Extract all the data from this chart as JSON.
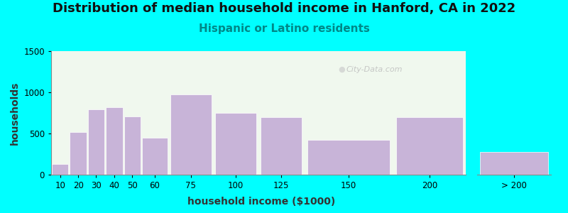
{
  "title": "Distribution of median household income in Hanford, CA in 2022",
  "subtitle": "Hispanic or Latino residents",
  "xlabel": "household income ($1000)",
  "ylabel": "households",
  "background_outer": "#00FFFF",
  "background_inner": "#e8f5e5",
  "bar_color": "#c8b4d8",
  "bar_edge_color": "#ffffff",
  "categories": [
    "10",
    "20",
    "30",
    "40",
    "50",
    "60",
    "75",
    "100",
    "125",
    "150",
    "200",
    "> 200"
  ],
  "values": [
    130,
    520,
    790,
    820,
    710,
    450,
    970,
    750,
    700,
    420,
    700,
    280
  ],
  "ylim": [
    0,
    1500
  ],
  "yticks": [
    0,
    500,
    1000,
    1500
  ],
  "title_fontsize": 13,
  "subtitle_fontsize": 11,
  "subtitle_color": "#008888",
  "axis_label_fontsize": 10,
  "tick_fontsize": 8.5,
  "watermark": "City-Data.com",
  "x_positions": [
    10,
    20,
    30,
    40,
    50,
    60,
    75,
    100,
    125,
    150,
    200,
    240
  ],
  "x_widths": [
    10,
    10,
    10,
    10,
    10,
    15,
    25,
    25,
    25,
    50,
    40,
    40
  ]
}
